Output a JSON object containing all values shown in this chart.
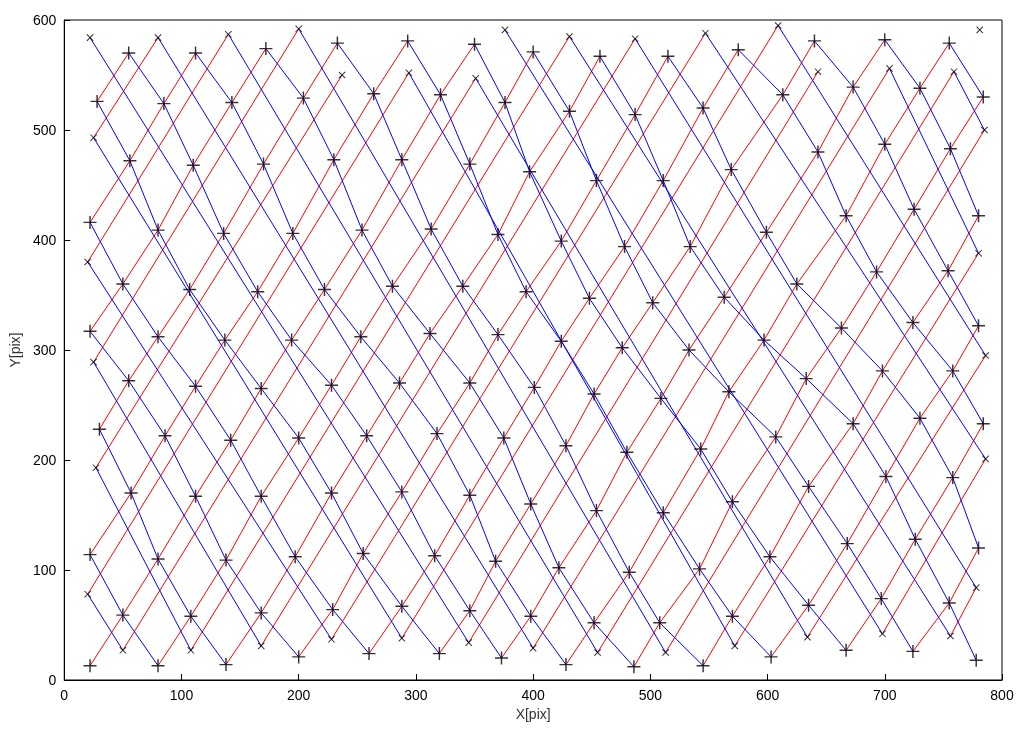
{
  "chart_data": {
    "type": "line",
    "xlabel": "X[pix]",
    "ylabel": "Y[pix]",
    "xlim": [
      0,
      800
    ],
    "xticks": [
      0,
      100,
      200,
      300,
      400,
      500,
      600,
      700,
      800
    ],
    "ylim": [
      0,
      600
    ],
    "yticks": [
      0,
      100,
      200,
      300,
      400,
      500,
      600
    ],
    "marker": "none",
    "line_style": "solid",
    "series": [
      {
        "color": "#ff0000",
        "x": [
          22,
          50,
          80,
          112,
          142,
          168,
          194,
          222,
          254,
          288,
          321,
          350
        ],
        "values": [
          13,
          59,
          110,
          167,
          218,
          265,
          309,
          355,
          409,
          473,
          532,
          578
        ]
      },
      {
        "color": "#ff0000",
        "x": [
          80,
          108,
          138,
          168,
          200,
          228,
          253,
          280,
          313,
          346,
          376,
          400
        ],
        "values": [
          13,
          58,
          109,
          167,
          220,
          268,
          312,
          358,
          410,
          469,
          525,
          571
        ]
      },
      {
        "color": "#ff0000",
        "x": [
          138,
          168,
          197,
          228,
          258,
          286,
          312,
          340,
          370,
          397,
          431,
          457
        ],
        "values": [
          14,
          61,
          112,
          170,
          222,
          270,
          315,
          358,
          405,
          462,
          517,
          567
        ]
      },
      {
        "color": "#ff0000",
        "x": [
          200,
          229,
          255,
          288,
          318,
          346,
          370,
          394,
          424,
          454,
          487,
          515
        ],
        "values": [
          21,
          64,
          115,
          171,
          224,
          270,
          314,
          353,
          399,
          454,
          514,
          567
        ]
      },
      {
        "color": "#ff0000",
        "x": [
          260,
          288,
          316,
          346,
          375,
          401,
          424,
          448,
          478,
          511,
          545,
          575
        ],
        "values": [
          24,
          67,
          113,
          168,
          220,
          266,
          308,
          347,
          394,
          454,
          520,
          573
        ]
      },
      {
        "color": "#ff0000",
        "x": [
          320,
          346,
          368,
          398,
          428,
          452,
          476,
          502,
          534,
          569,
          613,
          640
        ],
        "values": [
          24,
          63,
          108,
          160,
          213,
          260,
          302,
          343,
          394,
          464,
          532,
          581
        ]
      },
      {
        "color": "#ff0000",
        "x": [
          373,
          398,
          422,
          454,
          480,
          509,
          533,
          563,
          599,
          643,
          673,
          700
        ],
        "values": [
          20,
          58,
          102,
          154,
          207,
          256,
          300,
          348,
          407,
          480,
          539,
          582
        ]
      },
      {
        "color": "#ff0000",
        "x": [
          428,
          452,
          482,
          511,
          543,
          567,
          597,
          625,
          667,
          700,
          730,
          755
        ],
        "values": [
          14,
          52,
          98,
          152,
          210,
          262,
          309,
          360,
          422,
          487,
          538,
          579
        ]
      },
      {
        "color": "#ff0000",
        "x": [
          486,
          508,
          542,
          570,
          607,
          633,
          663,
          693,
          725,
          756,
          784
        ],
        "values": [
          12,
          52,
          101,
          162,
          221,
          274,
          320,
          371,
          428,
          483,
          530
        ]
      },
      {
        "color": "#ff0000",
        "x": [
          545,
          570,
          602,
          635,
          673,
          698,
          724,
          754,
          780
        ],
        "values": [
          13,
          58,
          112,
          176,
          233,
          281,
          325,
          372,
          422
        ]
      },
      {
        "color": "#ff0000",
        "x": [
          603,
          635,
          668,
          701,
          730,
          758,
          780
        ],
        "values": [
          21,
          68,
          124,
          185,
          238,
          281,
          322
        ]
      },
      {
        "color": "#ff0000",
        "x": [
          667,
          697,
          726,
          758,
          784
        ],
        "values": [
          27,
          74,
          128,
          184,
          233
        ]
      },
      {
        "color": "#ff0000",
        "x": [
          724,
          755,
          780
        ],
        "values": [
          26,
          70,
          120
        ]
      },
      {
        "color": "#ff0000",
        "x": [
          22,
          57,
          86,
          112,
          137,
          165,
          195,
          230,
          264,
          293
        ],
        "values": [
          114,
          170,
          222,
          267,
          309,
          353,
          406,
          473,
          533,
          581
        ]
      },
      {
        "color": "#ff0000",
        "x": [
          30,
          55,
          80,
          107,
          136,
          170,
          204,
          233
        ],
        "values": [
          228,
          272,
          312,
          355,
          406,
          469,
          529,
          579
        ]
      },
      {
        "color": "#ff0000",
        "x": [
          22,
          50,
          80,
          110,
          143,
          172
        ],
        "values": [
          317,
          360,
          409,
          468,
          525,
          574
        ]
      },
      {
        "color": "#ff0000",
        "x": [
          22,
          56,
          85,
          112
        ],
        "values": [
          416,
          472,
          524,
          570
        ]
      },
      {
        "color": "#ff0000",
        "x": [
          28,
          55
        ],
        "values": [
          526,
          570
        ]
      },
      {
        "color": "#ff0000",
        "x": [
          25,
          80
        ],
        "values": [
          493,
          584
        ]
      },
      {
        "color": "#ff0000",
        "x": [
          20,
          140
        ],
        "values": [
          380,
          587
        ]
      },
      {
        "color": "#ff0000",
        "x": [
          25,
          200
        ],
        "values": [
          289,
          592
        ]
      },
      {
        "color": "#ff0000",
        "x": [
          27,
          237
        ],
        "values": [
          193,
          550
        ]
      },
      {
        "color": "#ff0000",
        "x": [
          20,
          294
        ],
        "values": [
          78,
          552
        ]
      },
      {
        "color": "#ff0000",
        "x": [
          50,
          351
        ],
        "values": [
          27,
          547
        ]
      },
      {
        "color": "#ff0000",
        "x": [
          108,
          431
        ],
        "values": [
          27,
          585
        ]
      },
      {
        "color": "#ff0000",
        "x": [
          168,
          487
        ],
        "values": [
          31,
          583
        ]
      },
      {
        "color": "#ff0000",
        "x": [
          228,
          547
        ],
        "values": [
          37,
          588
        ]
      },
      {
        "color": "#ff0000",
        "x": [
          288,
          609
        ],
        "values": [
          38,
          595
        ]
      },
      {
        "color": "#ff0000",
        "x": [
          345,
          643
        ],
        "values": [
          34,
          553
        ]
      },
      {
        "color": "#ff0000",
        "x": [
          400,
          704
        ],
        "values": [
          29,
          556
        ]
      },
      {
        "color": "#ff0000",
        "x": [
          455,
          759
        ],
        "values": [
          25,
          553
        ]
      },
      {
        "color": "#ff0000",
        "x": [
          513,
          785
        ],
        "values": [
          25,
          500
        ]
      },
      {
        "color": "#ff0000",
        "x": [
          572,
          780
        ],
        "values": [
          31,
          388
        ]
      },
      {
        "color": "#ff0000",
        "x": [
          634,
          786
        ],
        "values": [
          39,
          295
        ]
      },
      {
        "color": "#ff0000",
        "x": [
          698,
          786
        ],
        "values": [
          42,
          201
        ]
      },
      {
        "color": "#ff0000",
        "x": [
          756,
          778
        ],
        "values": [
          40,
          84
        ]
      },
      {
        "color": "#0000ff",
        "x": [
          55,
          85,
          110,
          136,
          165,
          194,
          228,
          258,
          288,
          316,
          346,
          373
        ],
        "values": [
          570,
          524,
          468,
          406,
          353,
          309,
          268,
          222,
          171,
          113,
          63,
          20
        ]
      },
      {
        "color": "#0000ff",
        "x": [
          112,
          143,
          170,
          195,
          222,
          253,
          286,
          318,
          346,
          368,
          398,
          428
        ],
        "values": [
          570,
          525,
          469,
          406,
          355,
          312,
          270,
          224,
          168,
          108,
          58,
          14
        ]
      },
      {
        "color": "#0000ff",
        "x": [
          172,
          204,
          230,
          254,
          280,
          312,
          346,
          375,
          398,
          422,
          452,
          486
        ],
        "values": [
          574,
          529,
          473,
          409,
          358,
          315,
          270,
          220,
          160,
          102,
          52,
          12
        ]
      },
      {
        "color": "#0000ff",
        "x": [
          233,
          264,
          288,
          313,
          340,
          370,
          401,
          428,
          454,
          482,
          508,
          545
        ],
        "values": [
          579,
          533,
          473,
          410,
          358,
          314,
          266,
          213,
          154,
          98,
          52,
          13
        ]
      },
      {
        "color": "#0000ff",
        "x": [
          293,
          321,
          346,
          370,
          394,
          424,
          452,
          480,
          511,
          542,
          570,
          603
        ],
        "values": [
          581,
          532,
          469,
          405,
          353,
          308,
          260,
          207,
          152,
          101,
          58,
          21
        ]
      },
      {
        "color": "#0000ff",
        "x": [
          350,
          376,
          397,
          424,
          448,
          476,
          509,
          543,
          570,
          602,
          635,
          667
        ],
        "values": [
          578,
          525,
          462,
          399,
          347,
          302,
          256,
          210,
          162,
          112,
          68,
          27
        ]
      },
      {
        "color": "#0000ff",
        "x": [
          400,
          431,
          454,
          478,
          502,
          533,
          567,
          607,
          635,
          668,
          697,
          724
        ],
        "values": [
          571,
          517,
          454,
          394,
          343,
          300,
          262,
          221,
          176,
          124,
          74,
          26
        ]
      },
      {
        "color": "#0000ff",
        "x": [
          457,
          487,
          511,
          534,
          563,
          597,
          633,
          673,
          701,
          726,
          755,
          778
        ],
        "values": [
          567,
          514,
          454,
          394,
          348,
          309,
          274,
          233,
          185,
          128,
          70,
          18
        ]
      },
      {
        "color": "#0000ff",
        "x": [
          515,
          545,
          569,
          599,
          625,
          663,
          698,
          730,
          758,
          780
        ],
        "values": [
          567,
          520,
          464,
          407,
          360,
          320,
          281,
          238,
          184,
          120
        ]
      },
      {
        "color": "#0000ff",
        "x": [
          575,
          613,
          643,
          667,
          693,
          724,
          758,
          784
        ],
        "values": [
          573,
          532,
          480,
          422,
          371,
          325,
          281,
          233
        ]
      },
      {
        "color": "#0000ff",
        "x": [
          640,
          673,
          700,
          725,
          754,
          780
        ],
        "values": [
          581,
          539,
          487,
          428,
          372,
          322
        ]
      },
      {
        "color": "#0000ff",
        "x": [
          700,
          730,
          756,
          780
        ],
        "values": [
          582,
          538,
          483,
          422
        ]
      },
      {
        "color": "#0000ff",
        "x": [
          755,
          784
        ],
        "values": [
          579,
          530
        ]
      },
      {
        "color": "#0000ff",
        "x": [
          28,
          56,
          80,
          107,
          137,
          168,
          200,
          228,
          255,
          288,
          320
        ],
        "values": [
          526,
          472,
          409,
          355,
          309,
          265,
          220,
          170,
          115,
          67,
          24
        ]
      },
      {
        "color": "#0000ff",
        "x": [
          22,
          50,
          80,
          112,
          142,
          168,
          197,
          229,
          260
        ],
        "values": [
          416,
          360,
          312,
          267,
          218,
          167,
          112,
          64,
          24
        ]
      },
      {
        "color": "#0000ff",
        "x": [
          22,
          55,
          86,
          112,
          138,
          168,
          200
        ],
        "values": [
          317,
          272,
          222,
          167,
          109,
          61,
          21
        ]
      },
      {
        "color": "#0000ff",
        "x": [
          30,
          57,
          80,
          108,
          138
        ],
        "values": [
          228,
          170,
          110,
          58,
          14
        ]
      },
      {
        "color": "#0000ff",
        "x": [
          22,
          50,
          80
        ],
        "values": [
          114,
          59,
          13
        ]
      },
      {
        "color": "#0000ff",
        "x": [
          20,
          50
        ],
        "values": [
          78,
          27
        ]
      },
      {
        "color": "#0000ff",
        "x": [
          27,
          108
        ],
        "values": [
          193,
          27
        ]
      },
      {
        "color": "#0000ff",
        "x": [
          25,
          168
        ],
        "values": [
          289,
          31
        ]
      },
      {
        "color": "#0000ff",
        "x": [
          20,
          228
        ],
        "values": [
          380,
          37
        ]
      },
      {
        "color": "#0000ff",
        "x": [
          25,
          288
        ],
        "values": [
          493,
          38
        ]
      },
      {
        "color": "#0000ff",
        "x": [
          22,
          345
        ],
        "values": [
          584,
          34
        ]
      },
      {
        "color": "#0000ff",
        "x": [
          80,
          400
        ],
        "values": [
          584,
          29
        ]
      },
      {
        "color": "#0000ff",
        "x": [
          140,
          455
        ],
        "values": [
          587,
          25
        ]
      },
      {
        "color": "#0000ff",
        "x": [
          200,
          513
        ],
        "values": [
          592,
          25
        ]
      },
      {
        "color": "#0000ff",
        "x": [
          294,
          572
        ],
        "values": [
          552,
          31
        ]
      },
      {
        "color": "#0000ff",
        "x": [
          351,
          634
        ],
        "values": [
          547,
          39
        ]
      },
      {
        "color": "#0000ff",
        "x": [
          376,
          698
        ],
        "values": [
          591,
          42
        ]
      },
      {
        "color": "#0000ff",
        "x": [
          431,
          756
        ],
        "values": [
          585,
          40
        ]
      },
      {
        "color": "#0000ff",
        "x": [
          487,
          778
        ],
        "values": [
          583,
          84
        ]
      },
      {
        "color": "#0000ff",
        "x": [
          547,
          786
        ],
        "values": [
          588,
          201
        ]
      },
      {
        "color": "#0000ff",
        "x": [
          609,
          786
        ],
        "values": [
          595,
          295
        ]
      },
      {
        "color": "#0000ff",
        "x": [
          704,
          780
        ],
        "values": [
          556,
          388
        ]
      },
      {
        "color": "#0000ff",
        "x": [
          759,
          785
        ],
        "values": [
          553,
          500
        ]
      },
      {
        "type": "scatter",
        "marker": "plus",
        "color": "#000000",
        "x": [
          22,
          80,
          138,
          200,
          260,
          320,
          373,
          428,
          486,
          545,
          603,
          667,
          724,
          778,
          50,
          108,
          168,
          229,
          288,
          346,
          398,
          452,
          508,
          570,
          635,
          697,
          755,
          22,
          80,
          138,
          197,
          255,
          316,
          368,
          422,
          482,
          542,
          602,
          668,
          726,
          780,
          57,
          112,
          168,
          228,
          288,
          346,
          398,
          454,
          511,
          570,
          635,
          701,
          758,
          30,
          86,
          142,
          200,
          258,
          318,
          375,
          428,
          480,
          543,
          607,
          673,
          730,
          784,
          55,
          112,
          168,
          228,
          286,
          346,
          401,
          452,
          509,
          567,
          633,
          698,
          758,
          22,
          80,
          137,
          194,
          253,
          312,
          370,
          424,
          476,
          533,
          597,
          663,
          724,
          780,
          50,
          107,
          165,
          222,
          280,
          340,
          394,
          448,
          502,
          563,
          625,
          693,
          754,
          22,
          80,
          136,
          195,
          254,
          313,
          370,
          424,
          478,
          534,
          599,
          667,
          725,
          780,
          56,
          110,
          170,
          230,
          288,
          346,
          397,
          454,
          511,
          569,
          643,
          700,
          756,
          28,
          85,
          143,
          204,
          264,
          321,
          376,
          431,
          487,
          545,
          613,
          673,
          730,
          784,
          55,
          112,
          172,
          233,
          293,
          350,
          400,
          457,
          515,
          575,
          640,
          700,
          755
        ],
        "values": [
          13,
          13,
          14,
          21,
          24,
          24,
          20,
          14,
          12,
          13,
          21,
          27,
          26,
          18,
          59,
          58,
          61,
          64,
          67,
          63,
          58,
          52,
          52,
          58,
          68,
          74,
          70,
          114,
          110,
          109,
          112,
          115,
          113,
          108,
          102,
          98,
          101,
          112,
          124,
          128,
          120,
          170,
          167,
          167,
          170,
          171,
          168,
          160,
          154,
          152,
          162,
          176,
          185,
          184,
          228,
          222,
          218,
          220,
          222,
          224,
          220,
          213,
          207,
          210,
          221,
          233,
          238,
          233,
          272,
          267,
          265,
          268,
          270,
          270,
          266,
          260,
          256,
          262,
          274,
          281,
          281,
          317,
          312,
          309,
          309,
          312,
          315,
          314,
          308,
          302,
          300,
          309,
          320,
          325,
          322,
          360,
          355,
          353,
          355,
          358,
          358,
          353,
          347,
          343,
          348,
          360,
          371,
          372,
          416,
          409,
          406,
          406,
          409,
          410,
          405,
          399,
          394,
          394,
          407,
          422,
          428,
          422,
          472,
          468,
          469,
          473,
          473,
          469,
          462,
          454,
          454,
          464,
          480,
          487,
          483,
          526,
          524,
          525,
          529,
          533,
          532,
          525,
          517,
          514,
          520,
          532,
          539,
          538,
          530,
          570,
          570,
          574,
          579,
          581,
          578,
          571,
          567,
          567,
          573,
          581,
          582,
          579
        ]
      },
      {
        "type": "scatter",
        "marker": "cross",
        "color": "#000000",
        "x": [
          22,
          80,
          140,
          200,
          237,
          294,
          351,
          376,
          431,
          487,
          547,
          609,
          643,
          704,
          759,
          781,
          25,
          20,
          25,
          27,
          20,
          50,
          108,
          168,
          228,
          288,
          345,
          400,
          455,
          513,
          572,
          634,
          698,
          756,
          785,
          780,
          786,
          786,
          778
        ],
        "values": [
          584,
          584,
          587,
          592,
          550,
          552,
          547,
          591,
          585,
          583,
          588,
          595,
          553,
          556,
          553,
          591,
          493,
          380,
          289,
          193,
          78,
          27,
          27,
          31,
          37,
          38,
          34,
          29,
          25,
          25,
          31,
          39,
          42,
          40,
          500,
          388,
          295,
          201,
          84
        ]
      }
    ]
  }
}
